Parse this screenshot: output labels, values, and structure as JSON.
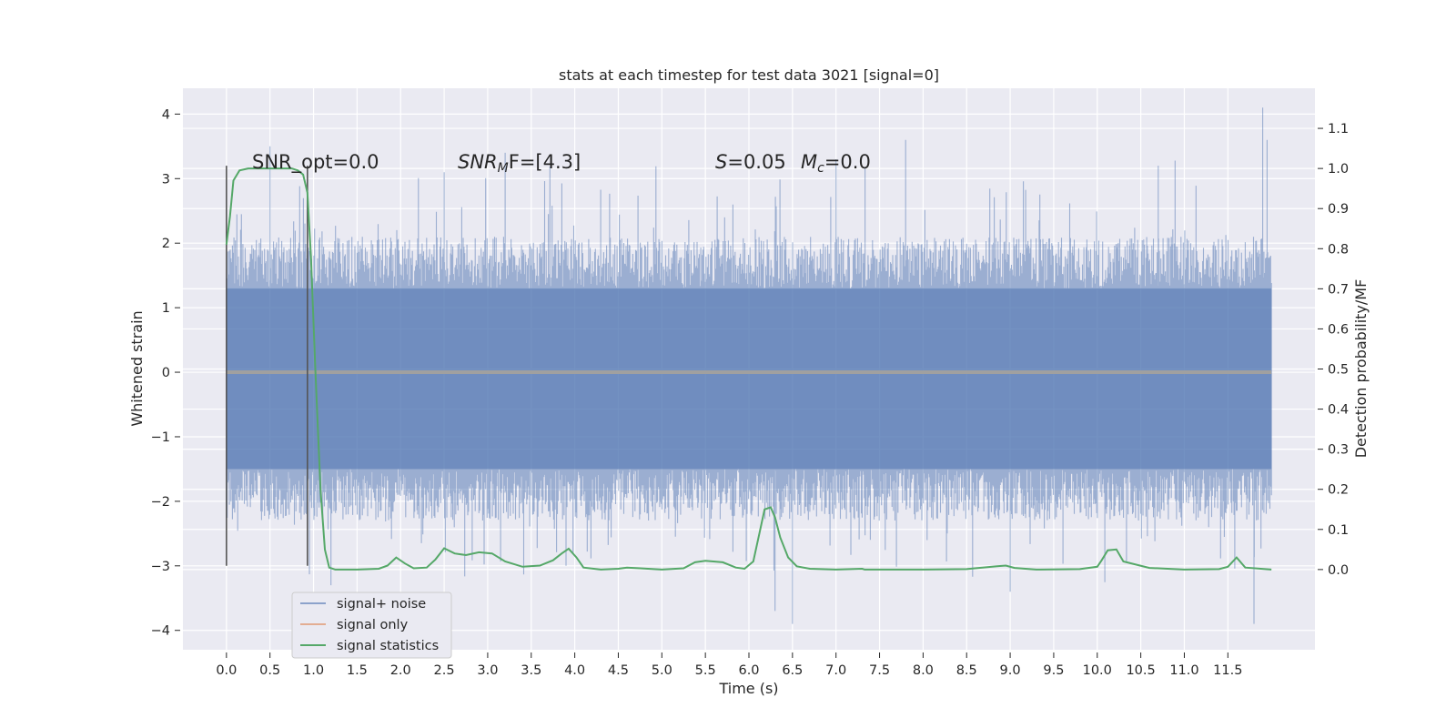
{
  "chart_data": {
    "type": "line",
    "title": "stats at each timestep for test data 3021 [signal=0]",
    "xlabel": "Time (s)",
    "ylabel": "Whitened strain",
    "ylabel_right": "Detection probability/MF",
    "xlim": [
      -0.5,
      12.5
    ],
    "ylim": [
      -4.3,
      4.4
    ],
    "ylim_right": [
      -0.2,
      1.2
    ],
    "x_ticks": [
      "0.0",
      "0.5",
      "1.0",
      "1.5",
      "2.0",
      "2.5",
      "3.0",
      "3.5",
      "4.0",
      "4.5",
      "5.0",
      "5.5",
      "6.0",
      "6.5",
      "7.0",
      "7.5",
      "8.0",
      "8.5",
      "9.0",
      "9.5",
      "10.0",
      "10.5",
      "11.0",
      "11.5"
    ],
    "y_ticks": [
      "4",
      "3",
      "2",
      "1",
      "0",
      "−1",
      "−2",
      "−3",
      "−4"
    ],
    "y_ticks_right": [
      "1.1",
      "1.0",
      "0.9",
      "0.8",
      "0.7",
      "0.6",
      "0.5",
      "0.4",
      "0.3",
      "0.2",
      "0.1",
      "0.0"
    ],
    "grid": true,
    "legend_position": "lower-left",
    "annotations": {
      "snr_opt": "SNR_opt=0.0",
      "snr_mf_main": "SNR",
      "snr_mf_sub": "M",
      "snr_mf_rest": "F=[4.3]",
      "s_var": "S",
      "s_val": "=0.05",
      "mc_var": "M",
      "mc_sub": "c",
      "mc_val": "=0.0"
    },
    "vertical_markers": [
      0.0,
      0.93
    ],
    "series": [
      {
        "name": "signal+ noise",
        "color": "#4c72b0",
        "style": "noise",
        "x_range": [
          0.0,
          12.0
        ],
        "typical_abs": 1.3,
        "spikes": [
          {
            "x": 0.5,
            "y": 3.5
          },
          {
            "x": 1.0,
            "y": -2.1
          },
          {
            "x": 1.2,
            "y": -3.3
          },
          {
            "x": 2.5,
            "y": 3.1
          },
          {
            "x": 3.2,
            "y": 3.4
          },
          {
            "x": 3.9,
            "y": -3.0
          },
          {
            "x": 6.3,
            "y": -3.7
          },
          {
            "x": 6.5,
            "y": -3.9
          },
          {
            "x": 7.0,
            "y": 3.3
          },
          {
            "x": 7.8,
            "y": 3.6
          },
          {
            "x": 9.0,
            "y": -3.4
          },
          {
            "x": 10.7,
            "y": 3.2
          },
          {
            "x": 11.8,
            "y": -3.9
          },
          {
            "x": 11.9,
            "y": 4.1
          },
          {
            "x": 11.95,
            "y": 3.6
          }
        ]
      },
      {
        "name": "signal only",
        "color": "#dd8452",
        "x": [
          0.0,
          12.0
        ],
        "y": [
          0.0,
          0.0
        ]
      },
      {
        "name": "signal statistics",
        "color": "#55a868",
        "axis": "right",
        "x": [
          0.0,
          0.04,
          0.08,
          0.15,
          0.25,
          0.5,
          0.75,
          0.82,
          0.88,
          0.93,
          0.97,
          1.02,
          1.08,
          1.13,
          1.18,
          1.25,
          1.5,
          1.75,
          1.85,
          1.95,
          2.05,
          2.15,
          2.3,
          2.4,
          2.5,
          2.62,
          2.75,
          2.9,
          3.05,
          3.2,
          3.4,
          3.6,
          3.75,
          3.85,
          3.93,
          4.02,
          4.1,
          4.3,
          4.5,
          4.6,
          4.75,
          5.0,
          5.25,
          5.38,
          5.5,
          5.7,
          5.85,
          5.95,
          6.05,
          6.12,
          6.18,
          6.25,
          6.3,
          6.36,
          6.45,
          6.55,
          6.7,
          7.0,
          7.3,
          7.33,
          7.5,
          8.0,
          8.5,
          8.85,
          8.95,
          9.05,
          9.3,
          9.8,
          10.0,
          10.05,
          10.12,
          10.22,
          10.3,
          10.6,
          11.0,
          11.4,
          11.5,
          11.6,
          11.7,
          12.0
        ],
        "y": [
          0.81,
          0.88,
          0.97,
          0.995,
          1.0,
          1.0,
          1.0,
          0.995,
          0.985,
          0.94,
          0.78,
          0.5,
          0.2,
          0.05,
          0.005,
          0.0,
          0.0,
          0.002,
          0.01,
          0.03,
          0.015,
          0.003,
          0.005,
          0.025,
          0.053,
          0.04,
          0.036,
          0.043,
          0.04,
          0.02,
          0.007,
          0.01,
          0.023,
          0.04,
          0.052,
          0.03,
          0.005,
          0.0,
          0.002,
          0.005,
          0.003,
          0.0,
          0.003,
          0.018,
          0.022,
          0.018,
          0.005,
          0.002,
          0.02,
          0.09,
          0.15,
          0.155,
          0.13,
          0.08,
          0.03,
          0.008,
          0.002,
          0.0,
          0.002,
          0.0,
          0.0,
          0.0,
          0.001,
          0.008,
          0.01,
          0.004,
          0.0,
          0.001,
          0.007,
          0.023,
          0.048,
          0.05,
          0.02,
          0.004,
          0.0,
          0.001,
          0.007,
          0.03,
          0.005,
          0.0
        ]
      }
    ],
    "colors": {
      "background": "#eaeaf2",
      "grid": "#ffffff",
      "marker_line": "#555555",
      "zero_line": "#a0a0a0"
    }
  }
}
